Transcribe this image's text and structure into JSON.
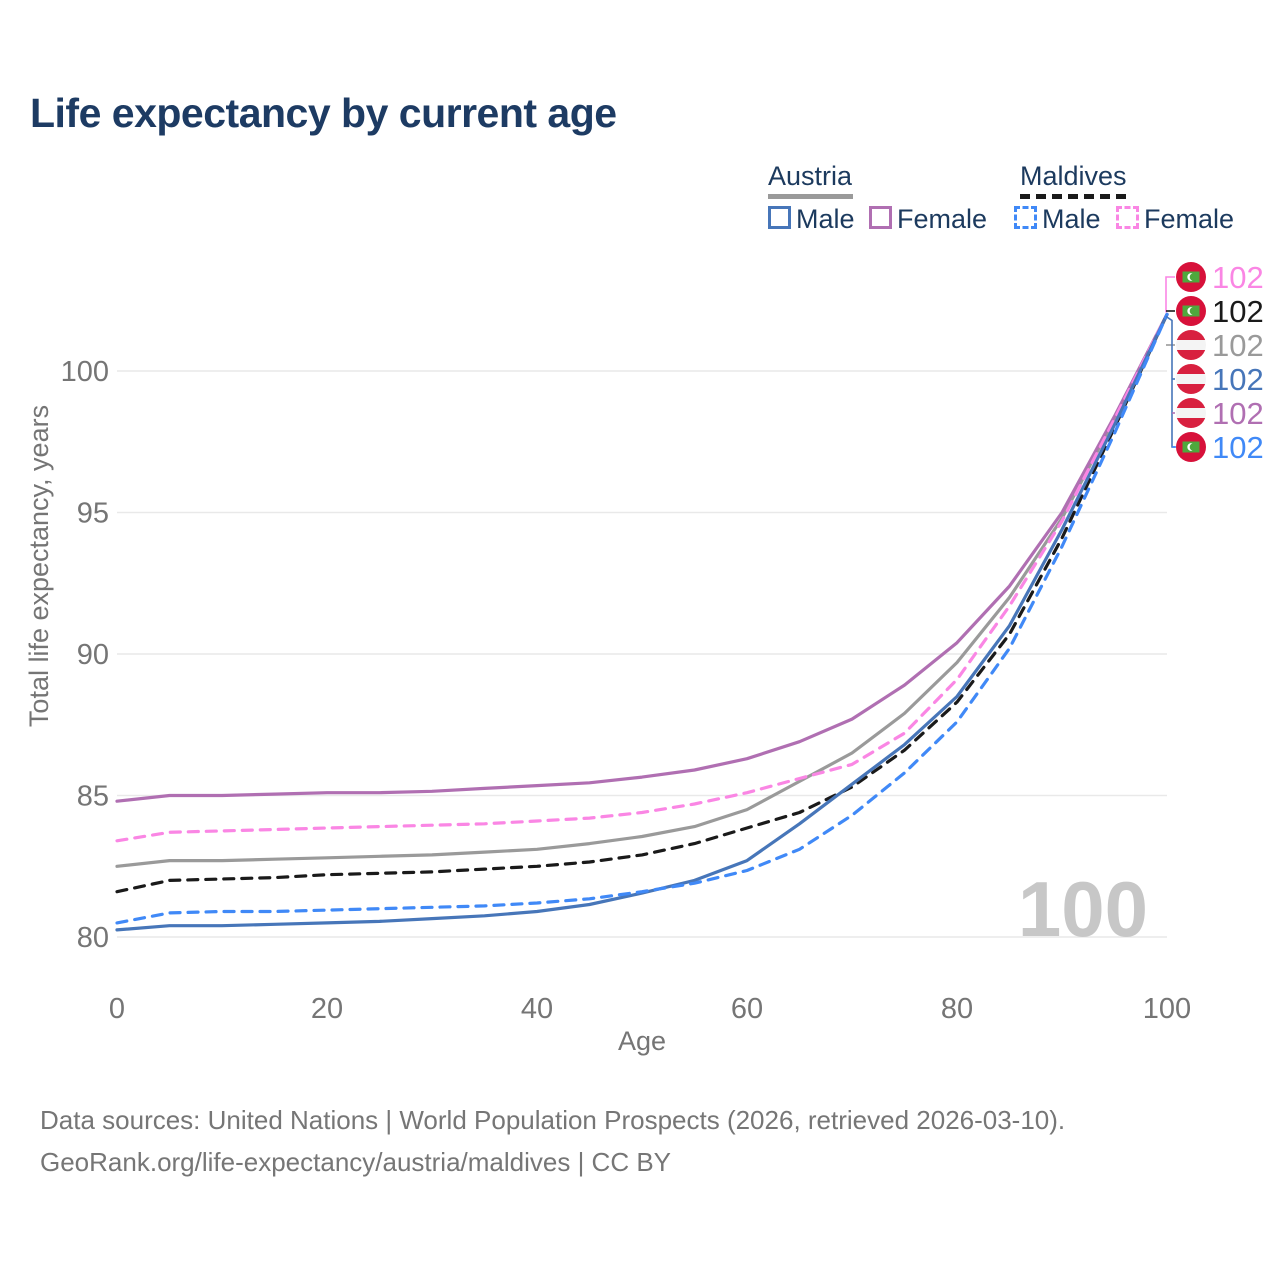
{
  "title": "Life expectancy by current age",
  "watermark": "100",
  "colors": {
    "title_text": "#1d3b63",
    "legend_text": "#1c3a5e",
    "axis_text": "#757575",
    "gridline": "#e9e9e9",
    "watermark": "#c7c7c7",
    "austria_male": "#4776b9",
    "austria_female": "#b06fb2",
    "austria_total": "#9a9a9a",
    "maldives_male": "#4089f7",
    "maldives_female": "#fa86e4",
    "maldives_total": "#1a1a1a",
    "maldives_flag_red": "#d7113a",
    "maldives_flag_green": "#4fa83d",
    "austria_flag_red": "#d8203f",
    "austria_flag_white": "#f4f4f4"
  },
  "legend": {
    "groups": [
      {
        "name": "Austria",
        "line_style": "solid",
        "color": "#9a9a9a",
        "items": [
          {
            "label": "Male",
            "color": "#4776b9"
          },
          {
            "label": "Female",
            "color": "#b06fb2"
          }
        ]
      },
      {
        "name": "Maldives",
        "line_style": "dashed",
        "color": "#1a1a1a",
        "items": [
          {
            "label": "Male",
            "color": "#4089f7"
          },
          {
            "label": "Female",
            "color": "#fa86e4"
          }
        ]
      }
    ]
  },
  "chart_data": {
    "type": "line",
    "title": "Life expectancy by current age",
    "xlabel": "Age",
    "ylabel": "Total life expectancy, years",
    "xlim": [
      0,
      100
    ],
    "ylim": [
      80,
      102
    ],
    "xticks": [
      0,
      20,
      40,
      60,
      80,
      100
    ],
    "yticks": [
      80,
      85,
      90,
      95,
      100
    ],
    "grid": "horizontal",
    "legend_position": "top-right",
    "x": [
      0,
      5,
      10,
      15,
      20,
      25,
      30,
      35,
      40,
      45,
      50,
      55,
      60,
      65,
      70,
      75,
      80,
      85,
      90,
      95,
      100
    ],
    "series": [
      {
        "name": "Austria",
        "country": "Austria",
        "sex": "Both",
        "style": "solid",
        "color": "#9a9a9a",
        "values": [
          82.5,
          82.7,
          82.7,
          82.75,
          82.8,
          82.85,
          82.9,
          83.0,
          83.1,
          83.3,
          83.55,
          83.9,
          84.5,
          85.5,
          86.5,
          87.9,
          89.7,
          92.0,
          94.8,
          98.3,
          102
        ]
      },
      {
        "name": "Austria Female",
        "country": "Austria",
        "sex": "Female",
        "style": "solid",
        "color": "#b06fb2",
        "values": [
          84.8,
          85.0,
          85.0,
          85.05,
          85.1,
          85.1,
          85.15,
          85.25,
          85.35,
          85.45,
          85.65,
          85.9,
          86.3,
          86.9,
          87.7,
          88.9,
          90.4,
          92.4,
          95.0,
          98.4,
          102
        ]
      },
      {
        "name": "Maldives",
        "country": "Maldives",
        "sex": "Both",
        "style": "dashed",
        "color": "#1a1a1a",
        "values": [
          81.6,
          82.0,
          82.05,
          82.1,
          82.2,
          82.25,
          82.3,
          82.4,
          82.5,
          82.65,
          82.9,
          83.3,
          83.85,
          84.4,
          85.3,
          86.6,
          88.3,
          90.7,
          94.1,
          98.0,
          102
        ]
      },
      {
        "name": "Maldives Female",
        "country": "Maldives",
        "sex": "Female",
        "style": "dashed",
        "color": "#fa86e4",
        "values": [
          83.4,
          83.7,
          83.75,
          83.8,
          83.85,
          83.9,
          83.95,
          84.0,
          84.1,
          84.2,
          84.4,
          84.7,
          85.1,
          85.6,
          86.1,
          87.2,
          89.1,
          91.7,
          94.7,
          98.3,
          102
        ]
      },
      {
        "name": "Austria Male",
        "country": "Austria",
        "sex": "Male",
        "style": "solid",
        "color": "#4776b9",
        "values": [
          80.25,
          80.4,
          80.4,
          80.45,
          80.5,
          80.55,
          80.65,
          80.75,
          80.9,
          81.15,
          81.55,
          82.0,
          82.7,
          84.0,
          85.4,
          86.8,
          88.5,
          91.0,
          94.4,
          98.1,
          102
        ]
      },
      {
        "name": "Maldives Male",
        "country": "Maldives",
        "sex": "Male",
        "style": "dashed",
        "color": "#4089f7",
        "values": [
          80.5,
          80.85,
          80.9,
          80.9,
          80.95,
          81.0,
          81.05,
          81.1,
          81.2,
          81.35,
          81.6,
          81.9,
          82.35,
          83.1,
          84.3,
          85.8,
          87.6,
          90.2,
          93.8,
          97.8,
          102
        ]
      }
    ],
    "end_labels": [
      {
        "series": "Maldives Female",
        "flag": "maldives",
        "value": "102",
        "color": "#fa86e4",
        "y": 277
      },
      {
        "series": "Maldives",
        "flag": "maldives",
        "value": "102",
        "color": "#1a1a1a",
        "y": 311
      },
      {
        "series": "Austria",
        "flag": "austria",
        "value": "102",
        "color": "#9a9a9a",
        "y": 345
      },
      {
        "series": "Austria Male",
        "flag": "austria",
        "value": "102",
        "color": "#4776b9",
        "y": 379
      },
      {
        "series": "Austria Female",
        "flag": "austria",
        "value": "102",
        "color": "#b06fb2",
        "y": 413
      },
      {
        "series": "Maldives Male",
        "flag": "maldives",
        "value": "102",
        "color": "#4089f7",
        "y": 447
      }
    ]
  },
  "footer": {
    "line1": "Data sources: United Nations | World Population Prospects (2026, retrieved 2026-03-10).",
    "line2": "GeoRank.org/life-expectancy/austria/maldives | CC BY"
  }
}
